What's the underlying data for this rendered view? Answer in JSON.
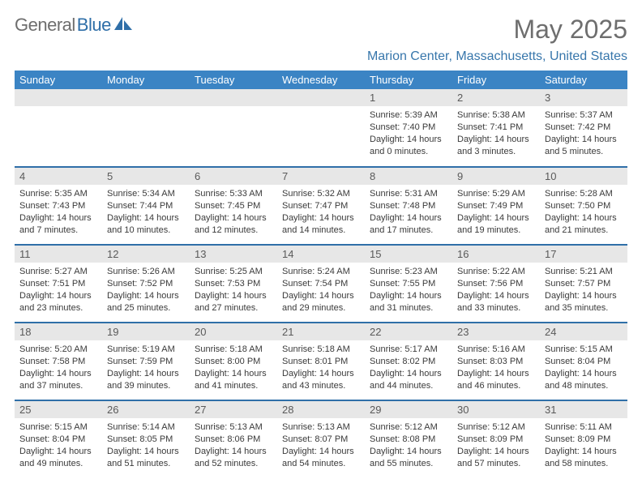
{
  "brand": {
    "part1": "General",
    "part2": "Blue"
  },
  "title": "May 2025",
  "location": "Marion Center, Massachusetts, United States",
  "colors": {
    "header_bg": "#3b84c4",
    "header_fg": "#ffffff",
    "row_border": "#2f6fa8",
    "daynum_bg": "#e7e7e7",
    "text": "#3a3a3a",
    "title": "#6e6e6e",
    "location": "#3776ab"
  },
  "weekdays": [
    "Sunday",
    "Monday",
    "Tuesday",
    "Wednesday",
    "Thursday",
    "Friday",
    "Saturday"
  ],
  "weeks": [
    [
      null,
      null,
      null,
      null,
      {
        "n": "1",
        "sunrise": "5:39 AM",
        "sunset": "7:40 PM",
        "dl1": "Daylight: 14 hours",
        "dl2": "and 0 minutes."
      },
      {
        "n": "2",
        "sunrise": "5:38 AM",
        "sunset": "7:41 PM",
        "dl1": "Daylight: 14 hours",
        "dl2": "and 3 minutes."
      },
      {
        "n": "3",
        "sunrise": "5:37 AM",
        "sunset": "7:42 PM",
        "dl1": "Daylight: 14 hours",
        "dl2": "and 5 minutes."
      }
    ],
    [
      {
        "n": "4",
        "sunrise": "5:35 AM",
        "sunset": "7:43 PM",
        "dl1": "Daylight: 14 hours",
        "dl2": "and 7 minutes."
      },
      {
        "n": "5",
        "sunrise": "5:34 AM",
        "sunset": "7:44 PM",
        "dl1": "Daylight: 14 hours",
        "dl2": "and 10 minutes."
      },
      {
        "n": "6",
        "sunrise": "5:33 AM",
        "sunset": "7:45 PM",
        "dl1": "Daylight: 14 hours",
        "dl2": "and 12 minutes."
      },
      {
        "n": "7",
        "sunrise": "5:32 AM",
        "sunset": "7:47 PM",
        "dl1": "Daylight: 14 hours",
        "dl2": "and 14 minutes."
      },
      {
        "n": "8",
        "sunrise": "5:31 AM",
        "sunset": "7:48 PM",
        "dl1": "Daylight: 14 hours",
        "dl2": "and 17 minutes."
      },
      {
        "n": "9",
        "sunrise": "5:29 AM",
        "sunset": "7:49 PM",
        "dl1": "Daylight: 14 hours",
        "dl2": "and 19 minutes."
      },
      {
        "n": "10",
        "sunrise": "5:28 AM",
        "sunset": "7:50 PM",
        "dl1": "Daylight: 14 hours",
        "dl2": "and 21 minutes."
      }
    ],
    [
      {
        "n": "11",
        "sunrise": "5:27 AM",
        "sunset": "7:51 PM",
        "dl1": "Daylight: 14 hours",
        "dl2": "and 23 minutes."
      },
      {
        "n": "12",
        "sunrise": "5:26 AM",
        "sunset": "7:52 PM",
        "dl1": "Daylight: 14 hours",
        "dl2": "and 25 minutes."
      },
      {
        "n": "13",
        "sunrise": "5:25 AM",
        "sunset": "7:53 PM",
        "dl1": "Daylight: 14 hours",
        "dl2": "and 27 minutes."
      },
      {
        "n": "14",
        "sunrise": "5:24 AM",
        "sunset": "7:54 PM",
        "dl1": "Daylight: 14 hours",
        "dl2": "and 29 minutes."
      },
      {
        "n": "15",
        "sunrise": "5:23 AM",
        "sunset": "7:55 PM",
        "dl1": "Daylight: 14 hours",
        "dl2": "and 31 minutes."
      },
      {
        "n": "16",
        "sunrise": "5:22 AM",
        "sunset": "7:56 PM",
        "dl1": "Daylight: 14 hours",
        "dl2": "and 33 minutes."
      },
      {
        "n": "17",
        "sunrise": "5:21 AM",
        "sunset": "7:57 PM",
        "dl1": "Daylight: 14 hours",
        "dl2": "and 35 minutes."
      }
    ],
    [
      {
        "n": "18",
        "sunrise": "5:20 AM",
        "sunset": "7:58 PM",
        "dl1": "Daylight: 14 hours",
        "dl2": "and 37 minutes."
      },
      {
        "n": "19",
        "sunrise": "5:19 AM",
        "sunset": "7:59 PM",
        "dl1": "Daylight: 14 hours",
        "dl2": "and 39 minutes."
      },
      {
        "n": "20",
        "sunrise": "5:18 AM",
        "sunset": "8:00 PM",
        "dl1": "Daylight: 14 hours",
        "dl2": "and 41 minutes."
      },
      {
        "n": "21",
        "sunrise": "5:18 AM",
        "sunset": "8:01 PM",
        "dl1": "Daylight: 14 hours",
        "dl2": "and 43 minutes."
      },
      {
        "n": "22",
        "sunrise": "5:17 AM",
        "sunset": "8:02 PM",
        "dl1": "Daylight: 14 hours",
        "dl2": "and 44 minutes."
      },
      {
        "n": "23",
        "sunrise": "5:16 AM",
        "sunset": "8:03 PM",
        "dl1": "Daylight: 14 hours",
        "dl2": "and 46 minutes."
      },
      {
        "n": "24",
        "sunrise": "5:15 AM",
        "sunset": "8:04 PM",
        "dl1": "Daylight: 14 hours",
        "dl2": "and 48 minutes."
      }
    ],
    [
      {
        "n": "25",
        "sunrise": "5:15 AM",
        "sunset": "8:04 PM",
        "dl1": "Daylight: 14 hours",
        "dl2": "and 49 minutes."
      },
      {
        "n": "26",
        "sunrise": "5:14 AM",
        "sunset": "8:05 PM",
        "dl1": "Daylight: 14 hours",
        "dl2": "and 51 minutes."
      },
      {
        "n": "27",
        "sunrise": "5:13 AM",
        "sunset": "8:06 PM",
        "dl1": "Daylight: 14 hours",
        "dl2": "and 52 minutes."
      },
      {
        "n": "28",
        "sunrise": "5:13 AM",
        "sunset": "8:07 PM",
        "dl1": "Daylight: 14 hours",
        "dl2": "and 54 minutes."
      },
      {
        "n": "29",
        "sunrise": "5:12 AM",
        "sunset": "8:08 PM",
        "dl1": "Daylight: 14 hours",
        "dl2": "and 55 minutes."
      },
      {
        "n": "30",
        "sunrise": "5:12 AM",
        "sunset": "8:09 PM",
        "dl1": "Daylight: 14 hours",
        "dl2": "and 57 minutes."
      },
      {
        "n": "31",
        "sunrise": "5:11 AM",
        "sunset": "8:09 PM",
        "dl1": "Daylight: 14 hours",
        "dl2": "and 58 minutes."
      }
    ]
  ]
}
